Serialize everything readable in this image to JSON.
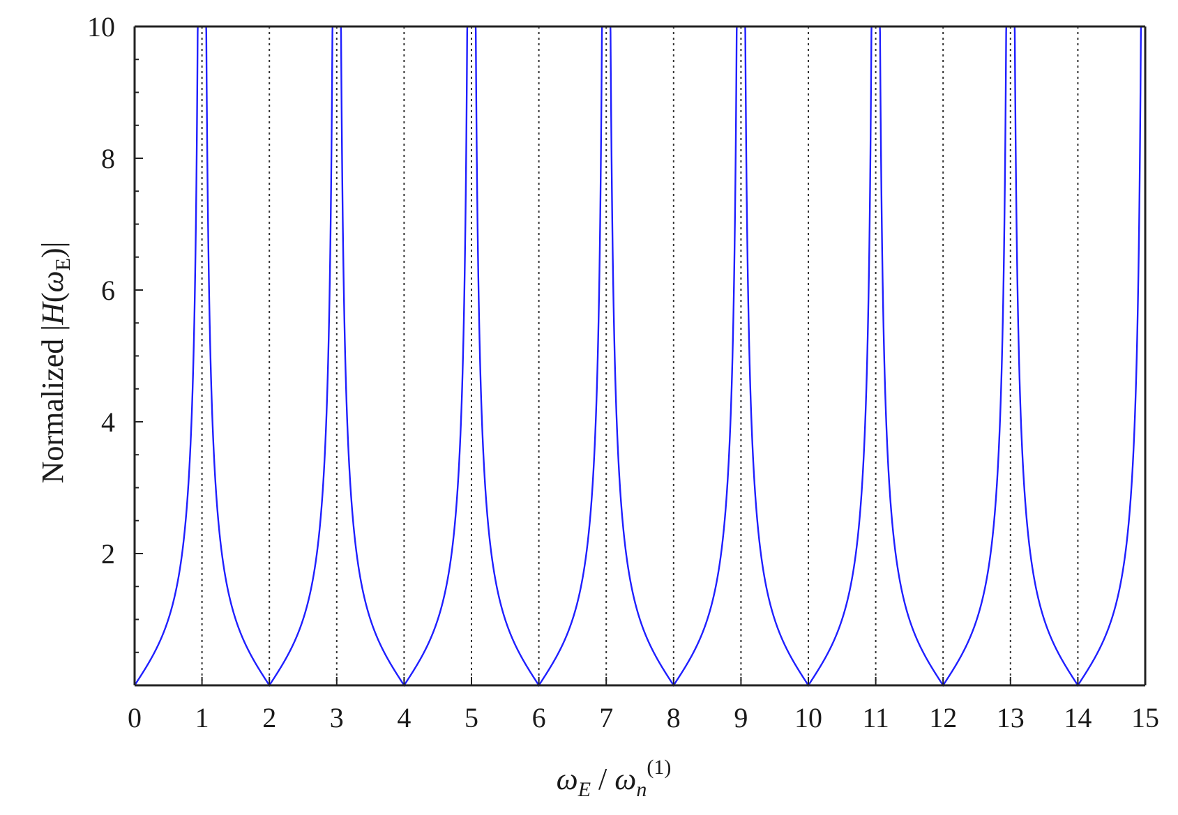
{
  "chart_data": {
    "type": "line",
    "title": "",
    "xlabel": {
      "base": "ω",
      "sub1": "E",
      "sep": " / ",
      "base2": "ω",
      "sub2": "n",
      "sup2": "(1)"
    },
    "ylabel": {
      "prefix": "Normalized |",
      "H": "H",
      "open": "(",
      "omega": "ω",
      "sub": "E",
      "close": ")|"
    },
    "xlim": [
      0,
      15
    ],
    "ylim": [
      0,
      10
    ],
    "x_ticks": [
      "0",
      "1",
      "2",
      "3",
      "4",
      "5",
      "6",
      "7",
      "8",
      "9",
      "10",
      "11",
      "12",
      "13",
      "14",
      "15"
    ],
    "y_ticks": [
      "2",
      "4",
      "6",
      "8",
      "10"
    ],
    "y_minor_tick_step": 0.5,
    "grid": {
      "vertical_dotted_at": [
        1,
        2,
        3,
        4,
        5,
        6,
        7,
        8,
        9,
        10,
        11,
        12,
        13,
        14
      ],
      "horizontal": false
    },
    "legend": "none",
    "series": [
      {
        "color": "#1f1fff",
        "description_of_shape": "|tan(pi x / 2)| clipped at 10",
        "x": [
          0,
          0.25,
          0.5,
          0.75,
          0.9,
          0.95,
          0.97,
          1,
          1.03,
          1.05,
          1.1,
          1.25,
          1.5,
          1.75,
          2
        ],
        "values": [
          0,
          0.41,
          1.0,
          2.41,
          6.31,
          10,
          10,
          10,
          10,
          10,
          6.31,
          2.41,
          1.0,
          0.41,
          0
        ],
        "period": 2,
        "x_range": [
          0,
          15
        ]
      }
    ]
  }
}
